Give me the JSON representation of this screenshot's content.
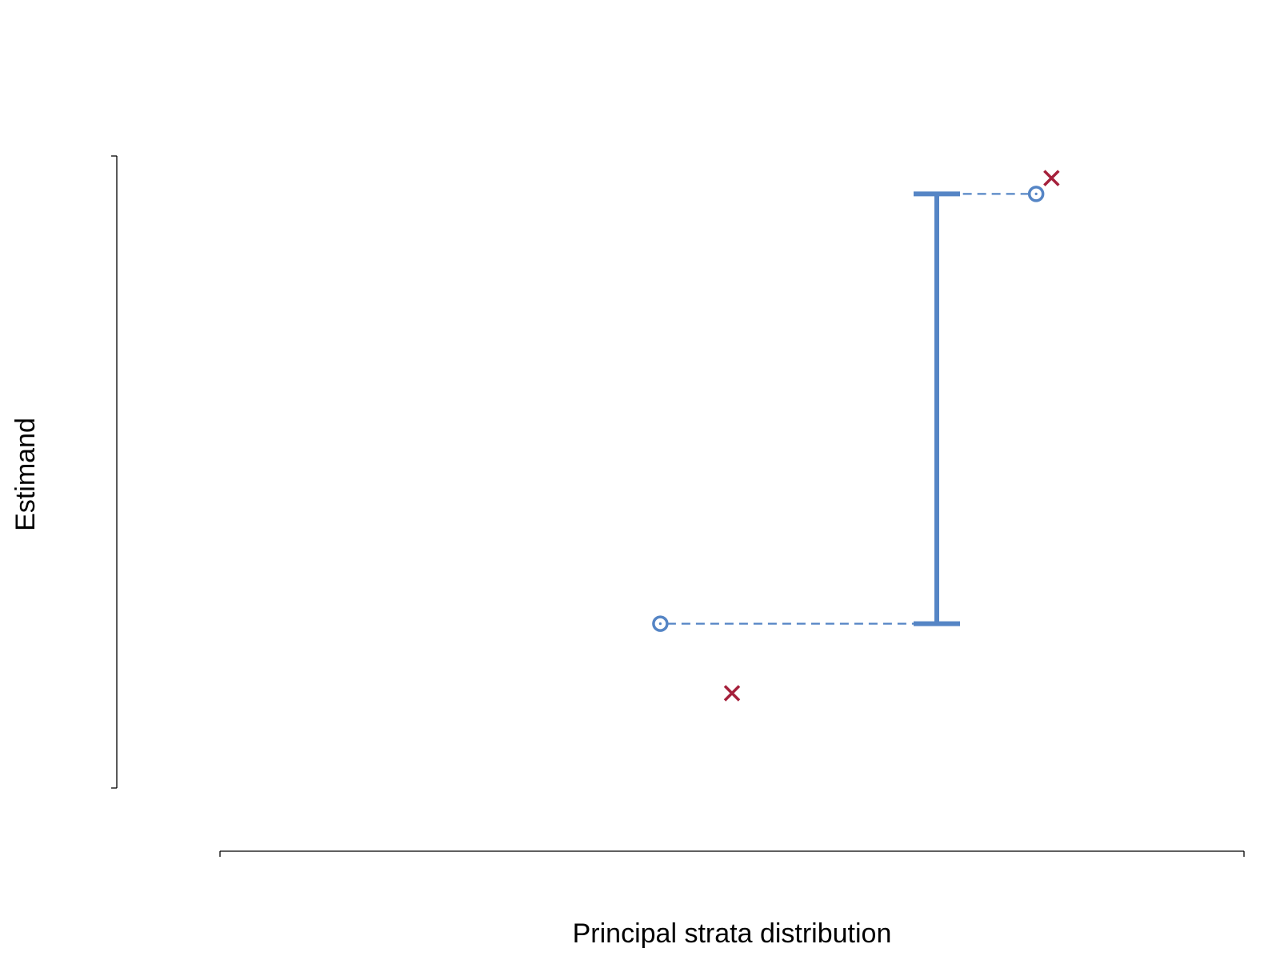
{
  "chart_data": {
    "type": "scatter",
    "title": "",
    "xlabel": "Principal strata distribution",
    "ylabel": "Estimand",
    "xlim": [
      0,
      1
    ],
    "ylim": [
      0,
      1
    ],
    "grid": false,
    "legend": "none",
    "interval": {
      "x": 0.7,
      "lower": 0.26,
      "upper": 0.94
    },
    "bound_points": [
      {
        "x": 0.43,
        "y": 0.26
      },
      {
        "x": 0.797,
        "y": 0.94
      }
    ],
    "true_points": [
      {
        "x": 0.5,
        "y": 0.15
      },
      {
        "x": 0.812,
        "y": 0.965
      }
    ],
    "colors": {
      "interval": "#5585C5",
      "bound_marker": "#5585C5",
      "true_marker": "#A5203B",
      "axis": "#000000"
    },
    "markers": {
      "bound": "open-circle-dot",
      "true": "x-cross"
    }
  }
}
